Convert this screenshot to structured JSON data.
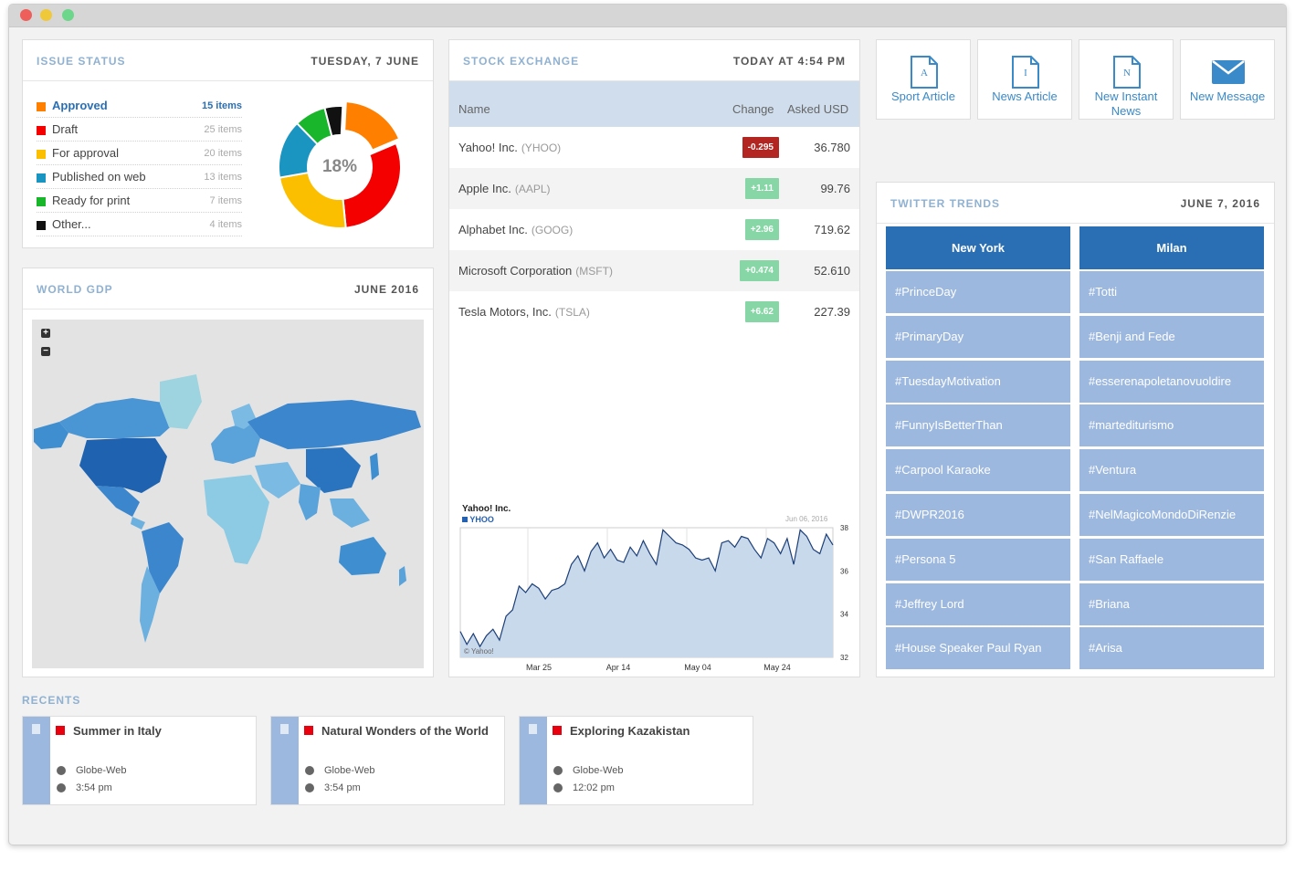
{
  "issue_status": {
    "title": "ISSUE STATUS",
    "date": "TUESDAY, 7 JUNE",
    "center_percent": "18%",
    "items": [
      {
        "label": "Approved",
        "count": "15 items",
        "color": "#ff7f00"
      },
      {
        "label": "Draft",
        "count": "25 items",
        "color": "#f40000"
      },
      {
        "label": "For approval",
        "count": "20 items",
        "color": "#fbbf00"
      },
      {
        "label": "Published on web",
        "count": "13 items",
        "color": "#1a95c2"
      },
      {
        "label": "Ready for print",
        "count": "7 items",
        "color": "#19b62b"
      },
      {
        "label": "Other...",
        "count": "4 items",
        "color": "#111111"
      }
    ]
  },
  "world_gdp": {
    "title": "WORLD GDP",
    "date": "JUNE 2016",
    "zoom_in": "+",
    "zoom_out": "−"
  },
  "stock_exchange": {
    "title": "STOCK EXCHANGE",
    "date": "TODAY AT 4:54 PM",
    "columns": [
      "Name",
      "Change",
      "Asked USD"
    ],
    "rows": [
      {
        "name": "Yahoo! Inc.",
        "ticker": "(YHOO)",
        "change": "-0.295",
        "asked": "36.780",
        "color": "#b22520"
      },
      {
        "name": "Apple Inc.",
        "ticker": "(AAPL)",
        "change": "+1.11",
        "asked": "99.76",
        "color": "#86d7a5"
      },
      {
        "name": "Alphabet Inc.",
        "ticker": "(GOOG)",
        "change": "+2.96",
        "asked": "719.62",
        "color": "#86d7a5"
      },
      {
        "name": "Microsoft Corporation",
        "ticker": "(MSFT)",
        "change": "+0.474",
        "asked": "52.610",
        "color": "#86d7a5"
      },
      {
        "name": "Tesla Motors, Inc.",
        "ticker": "(TSLA)",
        "change": "+6.62",
        "asked": "227.39",
        "color": "#86d7a5"
      }
    ],
    "chart": {
      "title": "Yahoo! Inc.",
      "series_label": "YHOO",
      "date_label": "Jun 06, 2016",
      "credit": "© Yahoo!"
    }
  },
  "chart_data": {
    "type": "area",
    "title": "Yahoo! Inc.",
    "series": [
      {
        "name": "YHOO",
        "values": [
          33.2,
          32.6,
          33.1,
          32.5,
          33.0,
          33.3,
          32.8,
          33.9,
          34.2,
          35.3,
          35.0,
          35.4,
          35.2,
          34.7,
          35.1,
          35.2,
          35.4,
          36.3,
          36.7,
          36.0,
          36.9,
          37.3,
          36.6,
          37.0,
          36.5,
          36.4,
          37.1,
          36.7,
          37.4,
          36.8,
          36.3,
          37.9,
          37.6,
          37.3,
          37.2,
          37.0,
          36.6,
          36.5,
          36.6,
          36.0,
          37.3,
          37.4,
          37.1,
          37.6,
          37.5,
          37.0,
          36.6,
          37.5,
          37.3,
          36.8,
          37.5,
          36.3,
          37.9,
          37.6,
          37.0,
          36.8,
          37.7,
          37.2
        ]
      }
    ],
    "x_ticks": [
      "Mar 25",
      "Apr 14",
      "May 04",
      "May 24"
    ],
    "y_ticks": [
      "38",
      "36",
      "34",
      "32"
    ],
    "ylim": [
      32,
      38
    ]
  },
  "actions": [
    {
      "letter": "A",
      "label": "Sport Article"
    },
    {
      "letter": "I",
      "label": "News Article"
    },
    {
      "letter": "N",
      "label": "New Instant News"
    },
    {
      "letter": "",
      "label": "New Message"
    }
  ],
  "twitter": {
    "title": "TWITTER TRENDS",
    "date": "JUNE 7, 2016",
    "cities": [
      "New York",
      "Milan"
    ],
    "new_york": [
      "#PrinceDay",
      "#PrimaryDay",
      "#TuesdayMotivation",
      "#FunnyIsBetterThan",
      "#Carpool Karaoke",
      "#DWPR2016",
      "#Persona 5",
      "#Jeffrey Lord",
      "#House Speaker Paul Ryan"
    ],
    "milan": [
      "#Totti",
      "#Benji and Fede",
      "#esserenapoletanovuoldire",
      "#martediturismo",
      "#Ventura",
      "#NelMagicoMondoDiRenzie",
      "#San Raffaele",
      "#Briana",
      "#Arisa"
    ]
  },
  "recents": {
    "title": "RECENTS",
    "items": [
      {
        "title": "Summer in Italy",
        "site": "Globe-Web",
        "time": "3:54 pm"
      },
      {
        "title": "Natural Wonders of the World",
        "site": "Globe-Web",
        "time": "3:54 pm"
      },
      {
        "title": "Exploring Kazakistan",
        "site": "Globe-Web",
        "time": "12:02 pm"
      }
    ]
  },
  "colors": {
    "accent": "#3a8ac9",
    "trend_head": "#2a6fb4",
    "trend_cell": "#9cb8de"
  }
}
